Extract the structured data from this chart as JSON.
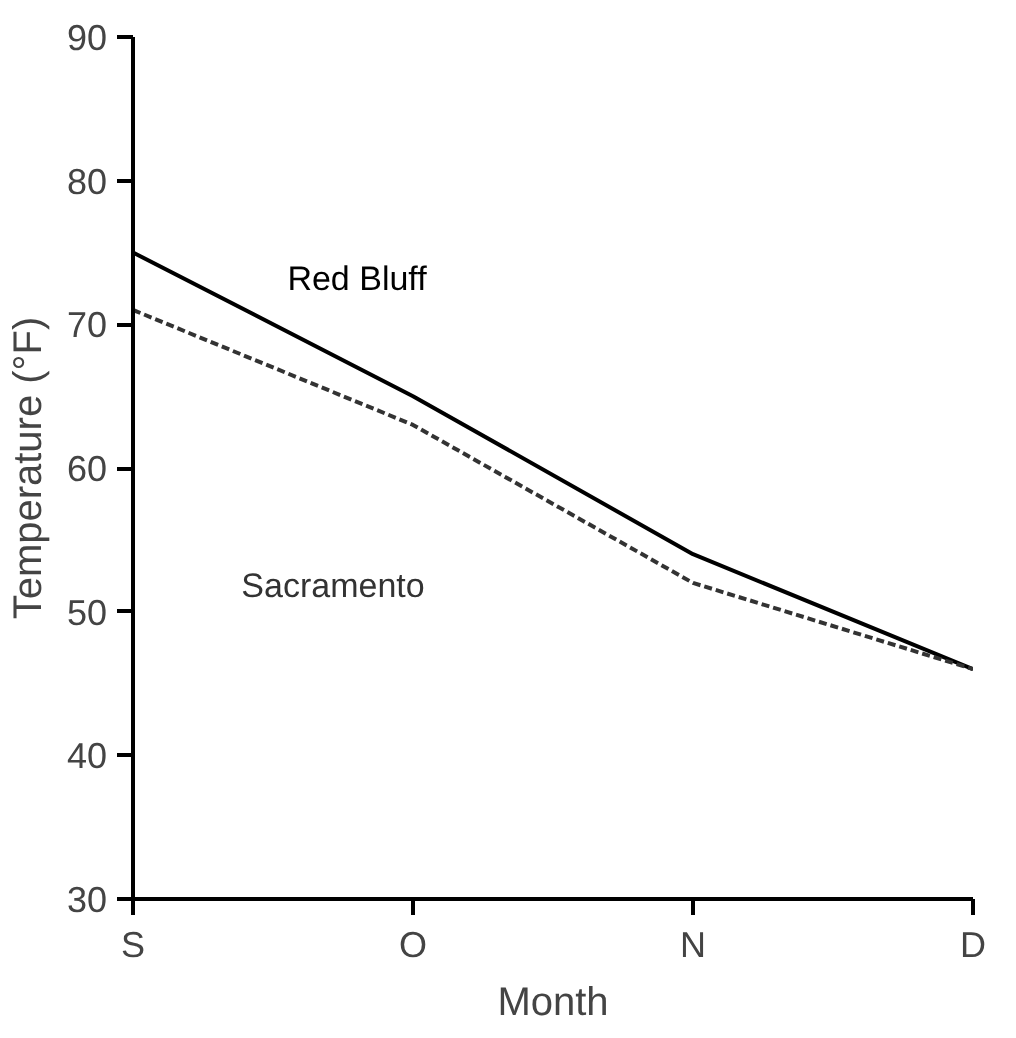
{
  "chart_data": {
    "type": "line",
    "xlabel": "Month",
    "ylabel": "Temperature (°F)",
    "categories": [
      "S",
      "O",
      "N",
      "D"
    ],
    "series": [
      {
        "name": "Red Bluff",
        "color": "#000000",
        "values": [
          75,
          65,
          54,
          46
        ],
        "line_style": "solid"
      },
      {
        "name": "Sacramento",
        "color": "#333333",
        "values": [
          71,
          63,
          52,
          46
        ],
        "line_style": "dashed"
      }
    ],
    "ylim": [
      30,
      90
    ],
    "yticks": [
      30,
      40,
      50,
      60,
      70,
      80,
      90
    ],
    "grid": false,
    "marker": "none"
  }
}
